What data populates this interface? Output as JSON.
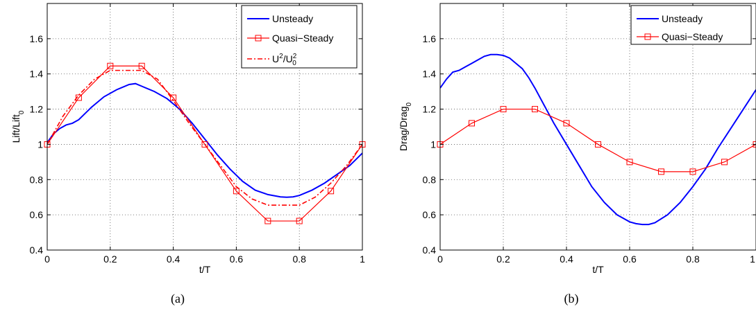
{
  "chart_data": [
    {
      "type": "line",
      "panel_label": "(a)",
      "xlabel": "t/T",
      "ylabel_main": "Lift/Lift",
      "ylabel_sub": "0",
      "xlim": [
        0,
        1
      ],
      "ylim": [
        0.4,
        1.8
      ],
      "xticks": [
        0,
        0.2,
        0.4,
        0.6,
        0.8,
        1
      ],
      "xtick_labels": [
        "0",
        "0.2",
        "0.4",
        "0.6",
        "0.8",
        "1"
      ],
      "yticks": [
        0.4,
        0.6,
        0.8,
        1.0,
        1.2,
        1.4,
        1.6
      ],
      "ytick_labels": [
        "0.4",
        "0.6",
        "0.8",
        "1",
        "1.2",
        "1.4",
        "1.6"
      ],
      "grid": true,
      "legend_placement": "top-right",
      "series": [
        {
          "name": "Unsteady",
          "color": "#0000ff",
          "style": "solid",
          "x": [
            0,
            0.02,
            0.04,
            0.06,
            0.08,
            0.1,
            0.14,
            0.18,
            0.22,
            0.26,
            0.28,
            0.3,
            0.34,
            0.38,
            0.42,
            0.46,
            0.5,
            0.54,
            0.58,
            0.62,
            0.66,
            0.7,
            0.74,
            0.76,
            0.78,
            0.8,
            0.84,
            0.88,
            0.92,
            0.96,
            1.0
          ],
          "y": [
            1.01,
            1.06,
            1.09,
            1.11,
            1.12,
            1.14,
            1.21,
            1.27,
            1.31,
            1.34,
            1.345,
            1.33,
            1.3,
            1.26,
            1.2,
            1.12,
            1.03,
            0.94,
            0.86,
            0.79,
            0.74,
            0.715,
            0.702,
            0.7,
            0.702,
            0.71,
            0.74,
            0.78,
            0.83,
            0.88,
            0.95
          ]
        },
        {
          "name": "Quasi−Steady",
          "color": "#ff0000",
          "style": "solid",
          "marker": "square",
          "x": [
            0,
            0.1,
            0.2,
            0.3,
            0.4,
            0.5,
            0.6,
            0.7,
            0.8,
            0.9,
            1.0
          ],
          "y": [
            1.0,
            1.265,
            1.445,
            1.445,
            1.265,
            1.0,
            0.735,
            0.565,
            0.565,
            0.735,
            1.0
          ]
        },
        {
          "name": "U",
          "legend_label_parts": [
            "U",
            "2",
            "/U",
            "2",
            "0"
          ],
          "color": "#ff0000",
          "style": "dashdot",
          "x": [
            0,
            0.05,
            0.1,
            0.15,
            0.2,
            0.25,
            0.3,
            0.35,
            0.4,
            0.45,
            0.5,
            0.55,
            0.6,
            0.65,
            0.7,
            0.75,
            0.8,
            0.85,
            0.9,
            0.95,
            1.0
          ],
          "y": [
            1.0,
            1.16,
            1.28,
            1.37,
            1.42,
            1.42,
            1.42,
            1.37,
            1.25,
            1.12,
            1.0,
            0.88,
            0.76,
            0.69,
            0.655,
            0.655,
            0.655,
            0.7,
            0.78,
            0.88,
            1.0
          ]
        }
      ]
    },
    {
      "type": "line",
      "panel_label": "(b)",
      "xlabel": "t/T",
      "ylabel_main": "Drag/Drag",
      "ylabel_sub": "0",
      "xlim": [
        0,
        1
      ],
      "ylim": [
        0.4,
        1.8
      ],
      "xticks": [
        0,
        0.2,
        0.4,
        0.6,
        0.8,
        1
      ],
      "xtick_labels": [
        "0",
        "0.2",
        "0.4",
        "0.6",
        "0.8",
        "1"
      ],
      "yticks": [
        0.4,
        0.6,
        0.8,
        1.0,
        1.2,
        1.4,
        1.6
      ],
      "ytick_labels": [
        "0.4",
        "0.6",
        "0.8",
        "1",
        "1.2",
        "1.4",
        "1.6"
      ],
      "grid": true,
      "legend_placement": "top-right",
      "series": [
        {
          "name": "Unsteady",
          "color": "#0000ff",
          "style": "solid",
          "x": [
            0,
            0.02,
            0.04,
            0.06,
            0.08,
            0.1,
            0.12,
            0.14,
            0.16,
            0.18,
            0.2,
            0.22,
            0.24,
            0.26,
            0.28,
            0.3,
            0.33,
            0.36,
            0.4,
            0.44,
            0.48,
            0.52,
            0.56,
            0.6,
            0.62,
            0.64,
            0.66,
            0.68,
            0.72,
            0.76,
            0.8,
            0.84,
            0.88,
            0.92,
            0.96,
            1.0
          ],
          "y": [
            1.32,
            1.37,
            1.41,
            1.42,
            1.44,
            1.46,
            1.48,
            1.5,
            1.51,
            1.51,
            1.505,
            1.49,
            1.46,
            1.43,
            1.38,
            1.32,
            1.22,
            1.12,
            1.0,
            0.88,
            0.76,
            0.67,
            0.6,
            0.56,
            0.55,
            0.545,
            0.545,
            0.555,
            0.6,
            0.67,
            0.76,
            0.86,
            0.98,
            1.09,
            1.2,
            1.31
          ]
        },
        {
          "name": "Quasi−Steady",
          "color": "#ff0000",
          "style": "solid",
          "marker": "square",
          "x": [
            0,
            0.1,
            0.2,
            0.3,
            0.4,
            0.5,
            0.6,
            0.7,
            0.8,
            0.9,
            1.0
          ],
          "y": [
            1.0,
            1.12,
            1.2,
            1.2,
            1.12,
            1.0,
            0.9,
            0.845,
            0.845,
            0.9,
            1.0
          ]
        }
      ]
    }
  ]
}
